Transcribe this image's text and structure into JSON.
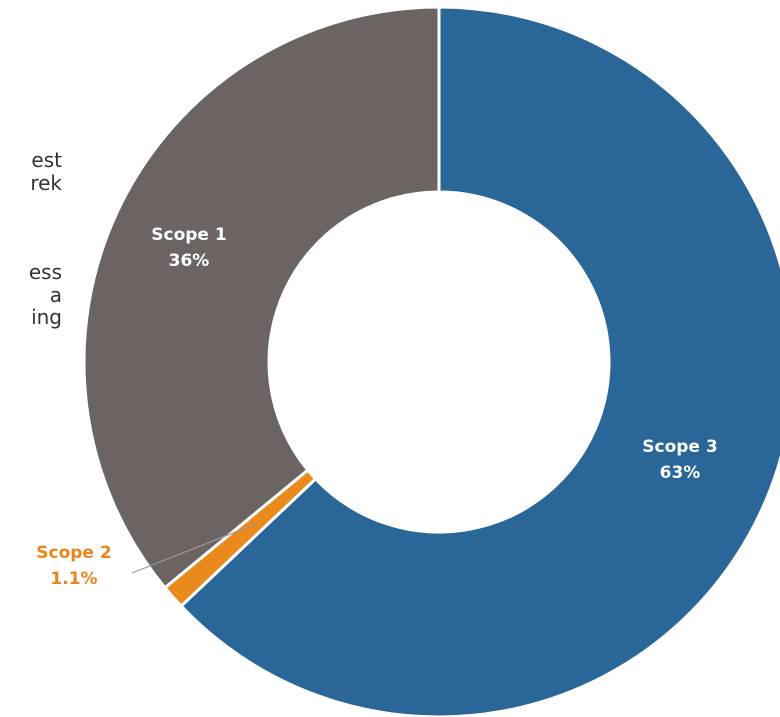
{
  "background_text": {
    "lines_top": [
      "est",
      "rek"
    ],
    "lines_bottom": [
      "ess",
      "a",
      "ing"
    ]
  },
  "chart_data": {
    "type": "pie",
    "donut": true,
    "title": "",
    "slices": [
      {
        "label": "Scope 3",
        "value_text": "63%",
        "value": 63,
        "color": "#2b6699",
        "label_color": "#ffffff"
      },
      {
        "label": "Scope 2",
        "value_text": "1.1%",
        "value": 1.1,
        "color": "#ea8a1c",
        "label_color": "#e8851d"
      },
      {
        "label": "Scope 1",
        "value_text": "36%",
        "value": 36,
        "color": "#6b6462",
        "label_color": "#ffffff"
      }
    ],
    "start": "12 o'clock",
    "direction": "clockwise",
    "legend": "none"
  }
}
